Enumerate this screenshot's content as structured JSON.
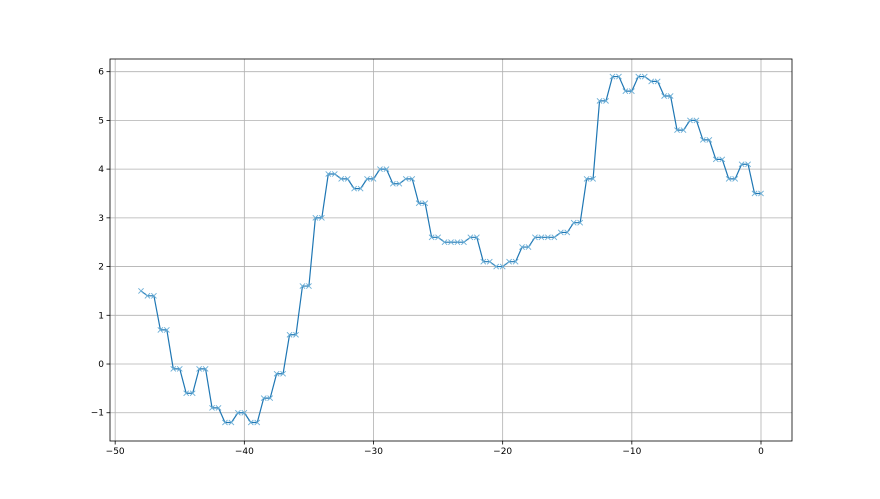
{
  "chart_data": {
    "type": "line",
    "title": "",
    "xlabel": "",
    "ylabel": "",
    "xlim": [
      -50.4,
      2.4
    ],
    "ylim": [
      -1.58,
      6.26
    ],
    "xticks": [
      -50,
      -40,
      -30,
      -20,
      -10,
      0
    ],
    "yticks": [
      -1,
      0,
      1,
      2,
      3,
      4,
      5,
      6
    ],
    "xtick_labels": [
      "−50",
      "−40",
      "−30",
      "−20",
      "−10",
      "0"
    ],
    "ytick_labels": [
      "−1",
      "0",
      "1",
      "2",
      "3",
      "4",
      "5",
      "6"
    ],
    "grid": true,
    "marker": "x",
    "line_color": "#1f77b4",
    "marker_color": "#6baed6",
    "x": [
      -48,
      -47.5,
      -47,
      -46.5,
      -46,
      -45.5,
      -45,
      -44.5,
      -44,
      -43.5,
      -43,
      -42.5,
      -42,
      -41.5,
      -41,
      -40.5,
      -40,
      -39.5,
      -39,
      -38.5,
      -38,
      -37.5,
      -37,
      -36.5,
      -36,
      -35.5,
      -35,
      -34.5,
      -34,
      -33.5,
      -33,
      -32.5,
      -32,
      -31.5,
      -31,
      -30.5,
      -30,
      -29.5,
      -29,
      -28.5,
      -28,
      -27.5,
      -27,
      -26.5,
      -26,
      -25.5,
      -25,
      -24.5,
      -24,
      -23.5,
      -23,
      -22.5,
      -22,
      -21.5,
      -21,
      -20.5,
      -20,
      -19.5,
      -19,
      -18.5,
      -18,
      -17.5,
      -17,
      -16.5,
      -16,
      -15.5,
      -15,
      -14.5,
      -14,
      -13.5,
      -13,
      -12.5,
      -12,
      -11.5,
      -11,
      -10.5,
      -10,
      -9.5,
      -9,
      -8.5,
      -8,
      -7.5,
      -7,
      -6.5,
      -6,
      -5.5,
      -5,
      -4.5,
      -4,
      -3.5,
      -3,
      -2.5,
      -2,
      -1.5,
      -1,
      -0.5,
      0
    ],
    "y": [
      1.5,
      1.4,
      1.4,
      0.7,
      0.7,
      -0.1,
      -0.1,
      -0.6,
      -0.6,
      -0.1,
      -0.1,
      -0.9,
      -0.9,
      -1.2,
      -1.2,
      -1.0,
      -1.0,
      -1.2,
      -1.2,
      -0.7,
      -0.7,
      -0.2,
      -0.2,
      0.6,
      0.6,
      1.6,
      1.6,
      3.0,
      3.0,
      3.9,
      3.9,
      3.8,
      3.8,
      3.6,
      3.6,
      3.8,
      3.8,
      4.0,
      4.0,
      3.7,
      3.7,
      3.8,
      3.8,
      3.3,
      3.3,
      2.6,
      2.6,
      2.5,
      2.5,
      2.5,
      2.5,
      2.6,
      2.6,
      2.1,
      2.1,
      2.0,
      2.0,
      2.1,
      2.1,
      2.4,
      2.4,
      2.6,
      2.6,
      2.6,
      2.6,
      2.7,
      2.7,
      2.9,
      2.9,
      3.8,
      3.8,
      5.4,
      5.4,
      5.9,
      5.9,
      5.6,
      5.6,
      5.9,
      5.9,
      5.8,
      5.8,
      5.5,
      5.5,
      4.8,
      4.8,
      5.0,
      5.0,
      4.6,
      4.6,
      4.2,
      4.2,
      3.8,
      3.8,
      4.1,
      4.1,
      3.5,
      3.5
    ]
  }
}
